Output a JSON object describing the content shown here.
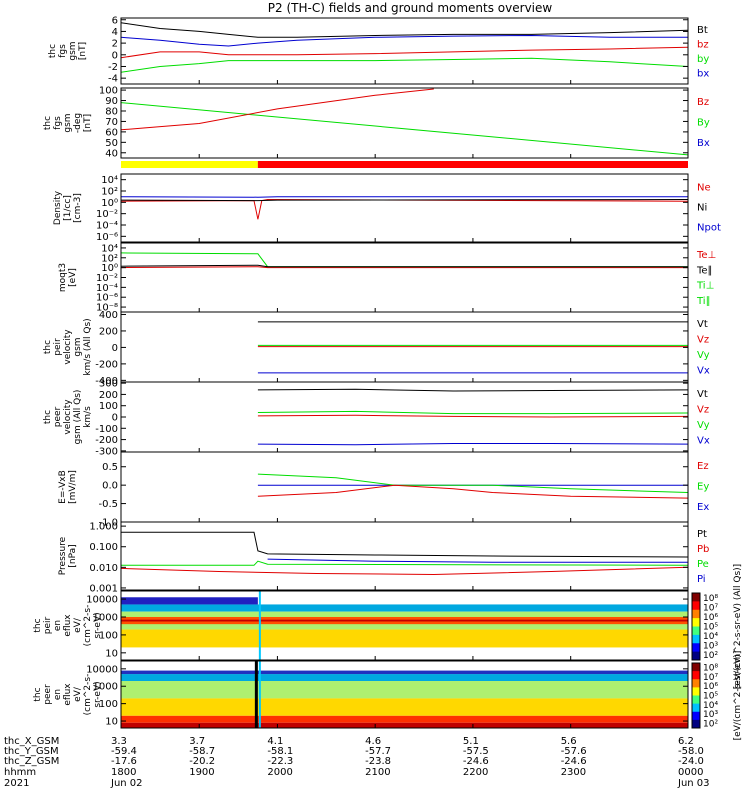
{
  "title": "P2 (TH-C) fields and ground moments overview",
  "colors": {
    "black": "#000000",
    "red": "#e00000",
    "green": "#00dd00",
    "blue": "#0000d0",
    "yellow": "#ffff00",
    "bar_red": "#ff0000"
  },
  "chart_data": [
    {
      "type": "line",
      "ylabel_lines": [
        "thc",
        "fgs",
        "gsm",
        "[nT]"
      ],
      "y_ticks": [
        {
          "v": 6,
          "t": "6"
        },
        {
          "v": 4,
          "t": "4"
        },
        {
          "v": 2,
          "t": "2"
        },
        {
          "v": 0,
          "t": "0"
        },
        {
          "v": -2,
          "t": "-2"
        },
        {
          "v": -4,
          "t": "-4"
        }
      ],
      "ylim": [
        -5,
        6.3
      ],
      "legend": [
        {
          "text": "Bt",
          "color": "black"
        },
        {
          "text": "bz",
          "color": "red"
        },
        {
          "text": "by",
          "color": "green"
        },
        {
          "text": "bx",
          "color": "blue"
        }
      ],
      "series": [
        {
          "color": "black",
          "t": [
            3.3,
            3.5,
            3.7,
            3.85,
            4.0,
            4.2,
            4.6,
            5.0,
            5.4,
            5.8,
            6.2
          ],
          "y": [
            5.5,
            4.5,
            4.0,
            3.5,
            3.0,
            3.0,
            3.3,
            3.5,
            3.5,
            3.8,
            4.2
          ]
        },
        {
          "color": "blue",
          "t": [
            3.3,
            3.5,
            3.7,
            3.85,
            4.0,
            4.2,
            4.6,
            5.0,
            5.4,
            5.8,
            6.2
          ],
          "y": [
            3.0,
            2.5,
            1.8,
            1.5,
            2.0,
            2.5,
            3.0,
            3.2,
            3.3,
            3.0,
            3.0
          ]
        },
        {
          "color": "red",
          "t": [
            3.3,
            3.5,
            3.7,
            3.85,
            4.0,
            4.2,
            4.6,
            5.0,
            5.4,
            5.8,
            6.2
          ],
          "y": [
            -0.5,
            0.5,
            0.5,
            0.0,
            0.0,
            0.0,
            0.2,
            0.5,
            0.8,
            1.0,
            1.3
          ]
        },
        {
          "color": "green",
          "t": [
            3.3,
            3.5,
            3.7,
            3.85,
            4.0,
            4.2,
            4.6,
            5.0,
            5.4,
            5.8,
            6.2
          ],
          "y": [
            -3.0,
            -2.0,
            -1.5,
            -1.0,
            -1.0,
            -1.0,
            -1.0,
            -0.8,
            -0.6,
            -1.2,
            -2.0
          ]
        }
      ]
    },
    {
      "type": "line",
      "ylabel_lines": [
        "thc",
        "fgs",
        "gsm",
        "-deg",
        "[nT]"
      ],
      "y_ticks": [
        {
          "v": 100,
          "t": "100"
        },
        {
          "v": 90,
          "t": "90"
        },
        {
          "v": 80,
          "t": "80"
        },
        {
          "v": 70,
          "t": "70"
        },
        {
          "v": 60,
          "t": "60"
        },
        {
          "v": 50,
          "t": "50"
        },
        {
          "v": 40,
          "t": "40"
        }
      ],
      "ylim": [
        35,
        102
      ],
      "legend": [
        {
          "text": "Bz",
          "color": "red"
        },
        {
          "text": "By",
          "color": "green"
        },
        {
          "text": "Bx",
          "color": "blue"
        }
      ],
      "series": [
        {
          "color": "green",
          "t": [
            3.3,
            6.2
          ],
          "y": [
            88,
            38
          ]
        },
        {
          "color": "red",
          "t": [
            3.3,
            3.7,
            4.1,
            4.6,
            4.9
          ],
          "y": [
            62,
            68,
            82,
            95,
            101
          ]
        }
      ]
    },
    {
      "type": "bar",
      "segments": [
        {
          "t0": 3.3,
          "t1": 4.0,
          "color": "yellow"
        },
        {
          "t0": 4.0,
          "t1": 6.2,
          "color": "bar_red"
        }
      ]
    },
    {
      "type": "line",
      "ylabel_lines": [
        "Density",
        "[1/cc]",
        "[cm-3]"
      ],
      "y_ticks": [
        {
          "v": 4,
          "t": "10⁴"
        },
        {
          "v": 2,
          "t": "10²"
        },
        {
          "v": 0,
          "t": "10⁰"
        },
        {
          "v": -2,
          "t": "10⁻²"
        },
        {
          "v": -4,
          "t": "10⁻⁴"
        },
        {
          "v": -6,
          "t": "10⁻⁶"
        }
      ],
      "ylim": [
        -7,
        5
      ],
      "legend": [
        {
          "text": "Ne",
          "color": "red"
        },
        {
          "text": "Ni",
          "color": "black"
        },
        {
          "text": "Npot",
          "color": "blue"
        }
      ],
      "series": [
        {
          "color": "blue",
          "t": [
            3.3,
            4.0,
            4.1,
            6.2
          ],
          "y": [
            1.0,
            0.9,
            1.0,
            1.0
          ]
        },
        {
          "color": "red",
          "t": [
            3.3,
            3.98,
            4.0,
            4.02,
            4.05,
            6.2
          ],
          "y": [
            0.2,
            0.3,
            -3.0,
            0.3,
            0.5,
            0.2
          ]
        },
        {
          "color": "black",
          "t": [
            3.3,
            4.0,
            4.1,
            6.2
          ],
          "y": [
            0.4,
            0.3,
            0.4,
            0.5
          ]
        }
      ]
    },
    {
      "type": "line",
      "ylabel_lines": [
        "moqt3",
        "[eV]"
      ],
      "y_ticks": [
        {
          "v": 4,
          "t": "10⁴"
        },
        {
          "v": 2,
          "t": "10²"
        },
        {
          "v": 0,
          "t": "10⁰"
        },
        {
          "v": -2,
          "t": "10⁻²"
        },
        {
          "v": -4,
          "t": "10⁻⁴"
        },
        {
          "v": -6,
          "t": "10⁻⁶"
        },
        {
          "v": -8,
          "t": "10⁻⁸"
        }
      ],
      "ylim": [
        -9,
        5
      ],
      "legend": [
        {
          "text": "Te⊥",
          "color": "red"
        },
        {
          "text": "Te∥",
          "color": "black"
        },
        {
          "text": "Ti⊥",
          "color": "green"
        },
        {
          "text": "Ti∥",
          "color": "green"
        }
      ],
      "series": [
        {
          "color": "green",
          "t": [
            3.3,
            4.0,
            4.05,
            6.2
          ],
          "y": [
            3.0,
            2.8,
            0.2,
            0.2
          ]
        },
        {
          "color": "red",
          "t": [
            3.3,
            4.0,
            4.05,
            6.2
          ],
          "y": [
            0.0,
            0.2,
            0.0,
            0.0
          ]
        },
        {
          "color": "black",
          "t": [
            3.3,
            4.0,
            4.05,
            6.2
          ],
          "y": [
            0.3,
            0.5,
            0.2,
            0.2
          ]
        }
      ]
    },
    {
      "type": "line",
      "ylabel_lines": [
        "thc",
        "peir",
        "velocity",
        "gsm",
        "km/s (All Qs)"
      ],
      "y_ticks": [
        {
          "v": 400,
          "t": "400"
        },
        {
          "v": 200,
          "t": "200"
        },
        {
          "v": 0,
          "t": "0"
        },
        {
          "v": -200,
          "t": "-200"
        },
        {
          "v": -400,
          "t": "-400"
        }
      ],
      "ylim": [
        -420,
        430
      ],
      "legend": [
        {
          "text": "Vt",
          "color": "black"
        },
        {
          "text": "Vz",
          "color": "red"
        },
        {
          "text": "Vy",
          "color": "green"
        },
        {
          "text": "Vx",
          "color": "blue"
        }
      ],
      "series": [
        {
          "color": "black",
          "t": [
            4.0,
            6.2
          ],
          "y": [
            310,
            310
          ]
        },
        {
          "color": "red",
          "t": [
            4.0,
            6.2
          ],
          "y": [
            10,
            10
          ]
        },
        {
          "color": "green",
          "t": [
            4.0,
            6.2
          ],
          "y": [
            25,
            25
          ]
        },
        {
          "color": "blue",
          "t": [
            4.0,
            6.2
          ],
          "y": [
            -310,
            -310
          ]
        }
      ]
    },
    {
      "type": "line",
      "ylabel_lines": [
        "thc",
        "peer",
        "velocity",
        "gsm (All Qs)",
        "km/s"
      ],
      "y_ticks": [
        {
          "v": 300,
          "t": "300"
        },
        {
          "v": 200,
          "t": "200"
        },
        {
          "v": 100,
          "t": "100"
        },
        {
          "v": 0,
          "t": "0"
        },
        {
          "v": -100,
          "t": "-100"
        },
        {
          "v": -200,
          "t": "-200"
        },
        {
          "v": -300,
          "t": "-300"
        }
      ],
      "ylim": [
        -310,
        310
      ],
      "legend": [
        {
          "text": "Vt",
          "color": "black"
        },
        {
          "text": "Vz",
          "color": "red"
        },
        {
          "text": "Vy",
          "color": "green"
        },
        {
          "text": "Vx",
          "color": "blue"
        }
      ],
      "series": [
        {
          "color": "black",
          "t": [
            4.0,
            4.5,
            5.0,
            5.5,
            6.2
          ],
          "y": [
            240,
            245,
            230,
            235,
            240
          ]
        },
        {
          "color": "green",
          "t": [
            4.0,
            4.5,
            5.0,
            5.5,
            6.2
          ],
          "y": [
            40,
            50,
            30,
            30,
            35
          ]
        },
        {
          "color": "red",
          "t": [
            4.0,
            4.5,
            5.0,
            5.5,
            6.2
          ],
          "y": [
            10,
            15,
            5,
            0,
            5
          ]
        },
        {
          "color": "blue",
          "t": [
            4.0,
            4.5,
            5.0,
            5.5,
            6.2
          ],
          "y": [
            -240,
            -245,
            -235,
            -235,
            -240
          ]
        }
      ]
    },
    {
      "type": "line",
      "ylabel_lines": [
        "E=-VxB",
        "[mV/m]"
      ],
      "y_ticks": [
        {
          "v": 0.5,
          "t": "0.5"
        },
        {
          "v": 0.0,
          "t": "0.0"
        },
        {
          "v": -0.5,
          "t": "-0.5"
        },
        {
          "v": -1.0,
          "t": "-1.0"
        }
      ],
      "ylim": [
        -1.0,
        0.9
      ],
      "legend": [
        {
          "text": "Ez",
          "color": "red"
        },
        {
          "text": "Ey",
          "color": "green"
        },
        {
          "text": "Ex",
          "color": "blue"
        }
      ],
      "series": [
        {
          "color": "blue",
          "t": [
            4.0,
            6.2
          ],
          "y": [
            0.0,
            0.0
          ]
        },
        {
          "color": "green",
          "t": [
            4.0,
            4.4,
            4.7,
            5.0,
            5.2,
            5.6,
            6.2
          ],
          "y": [
            0.3,
            0.2,
            0.0,
            0.0,
            0.0,
            -0.1,
            -0.2
          ]
        },
        {
          "color": "red",
          "t": [
            4.0,
            4.4,
            4.7,
            5.0,
            5.2,
            5.6,
            6.2
          ],
          "y": [
            -0.3,
            -0.2,
            0.0,
            -0.1,
            -0.2,
            -0.3,
            -0.35
          ]
        }
      ]
    },
    {
      "type": "line",
      "ylabel_lines": [
        "Pressure",
        "[nPa]"
      ],
      "y_ticks": [
        {
          "v": 0,
          "t": "1.000"
        },
        {
          "v": -1,
          "t": "0.100"
        },
        {
          "v": -2,
          "t": "0.010"
        },
        {
          "v": -3,
          "t": "0.001"
        }
      ],
      "ylim": [
        -3.1,
        0.2
      ],
      "legend": [
        {
          "text": "Pt",
          "color": "black"
        },
        {
          "text": "Pb",
          "color": "red"
        },
        {
          "text": "Pe",
          "color": "green"
        },
        {
          "text": "Pi",
          "color": "blue"
        }
      ],
      "series": [
        {
          "color": "black",
          "t": [
            3.3,
            3.98,
            4.0,
            4.05,
            4.6,
            5.2,
            6.2
          ],
          "y": [
            -0.3,
            -0.3,
            -1.2,
            -1.35,
            -1.4,
            -1.45,
            -1.5
          ]
        },
        {
          "color": "blue",
          "t": [
            4.05,
            4.6,
            5.2,
            6.2
          ],
          "y": [
            -1.6,
            -1.7,
            -1.75,
            -1.75
          ]
        },
        {
          "color": "green",
          "t": [
            3.3,
            3.98,
            4.0,
            4.05,
            6.2
          ],
          "y": [
            -1.9,
            -1.9,
            -1.7,
            -1.85,
            -1.9
          ]
        },
        {
          "color": "red",
          "t": [
            3.3,
            3.8,
            4.3,
            4.9,
            5.5,
            6.2
          ],
          "y": [
            -2.05,
            -2.2,
            -2.3,
            -2.35,
            -2.2,
            -2.0
          ]
        }
      ]
    },
    {
      "type": "heatmap",
      "ylabel_lines": [
        "thc",
        "peir",
        "en",
        "eflux",
        "eV/",
        "(cm^2-s-",
        "sr-eV)"
      ],
      "y_ticks": [
        {
          "v": 4,
          "t": "10000"
        },
        {
          "v": 3,
          "t": "1000"
        },
        {
          "v": 2,
          "t": "100"
        },
        {
          "v": 1,
          "t": "10"
        }
      ],
      "ylim": [
        0.6,
        4.45
      ]
    },
    {
      "type": "heatmap",
      "ylabel_lines": [
        "thc",
        "peer",
        "en",
        "eflux",
        "eV/",
        "(cm^2-s-",
        "sr-eV)"
      ],
      "y_ticks": [
        {
          "v": 4,
          "t": "10000"
        },
        {
          "v": 3,
          "t": "1000"
        },
        {
          "v": 2,
          "t": "100"
        },
        {
          "v": 1,
          "t": "10"
        }
      ],
      "ylim": [
        0.6,
        4.45
      ]
    }
  ],
  "colorbar": {
    "title": "[eV/(cm^2-s-sr-eV) (All Qs)]",
    "ticks": [
      {
        "e": 8,
        "t": "10⁸"
      },
      {
        "e": 7,
        "t": "10⁷"
      },
      {
        "e": 6,
        "t": "10⁶"
      },
      {
        "e": 5,
        "t": "10⁵"
      },
      {
        "e": 4,
        "t": "10⁴"
      },
      {
        "e": 3,
        "t": "10³"
      },
      {
        "e": 2,
        "t": "10²"
      }
    ],
    "second_title": "[eV/(cm^2-s-sr-eV)]",
    "second_ticks": [
      {
        "e": 8,
        "t": "10⁸"
      },
      {
        "e": 7,
        "t": "10⁷"
      },
      {
        "e": 6,
        "t": "10⁶"
      },
      {
        "e": 5,
        "t": "10⁵"
      },
      {
        "e": 4,
        "t": "10⁴"
      },
      {
        "e": 3,
        "t": "10³"
      },
      {
        "e": 2,
        "t": "10²"
      }
    ]
  },
  "x_axis": {
    "xlim": [
      3.3,
      6.2
    ],
    "tick_values": [
      3.3,
      3.7,
      4.1,
      4.6,
      5.1,
      5.6,
      6.2
    ],
    "row_labels": [
      "thc_X_GSM",
      "thc_Y_GSM",
      "thc_Z_GSM",
      "hhmm",
      "2021"
    ],
    "rows": [
      [
        "3.3",
        "3.7",
        "4.1",
        "4.6",
        "5.1",
        "5.6",
        "6.2"
      ],
      [
        "-59.4",
        "-58.7",
        "-58.1",
        "-57.7",
        "-57.5",
        "-57.6",
        "-58.0"
      ],
      [
        "-17.6",
        "-20.2",
        "-22.3",
        "-23.8",
        "-24.6",
        "-24.6",
        "-24.0"
      ],
      [
        "1800",
        "1900",
        "2000",
        "2100",
        "2200",
        "2300",
        "0000"
      ],
      [
        "Jun 02",
        "",
        "",
        "",
        "",
        "",
        "Jun 03"
      ]
    ]
  }
}
